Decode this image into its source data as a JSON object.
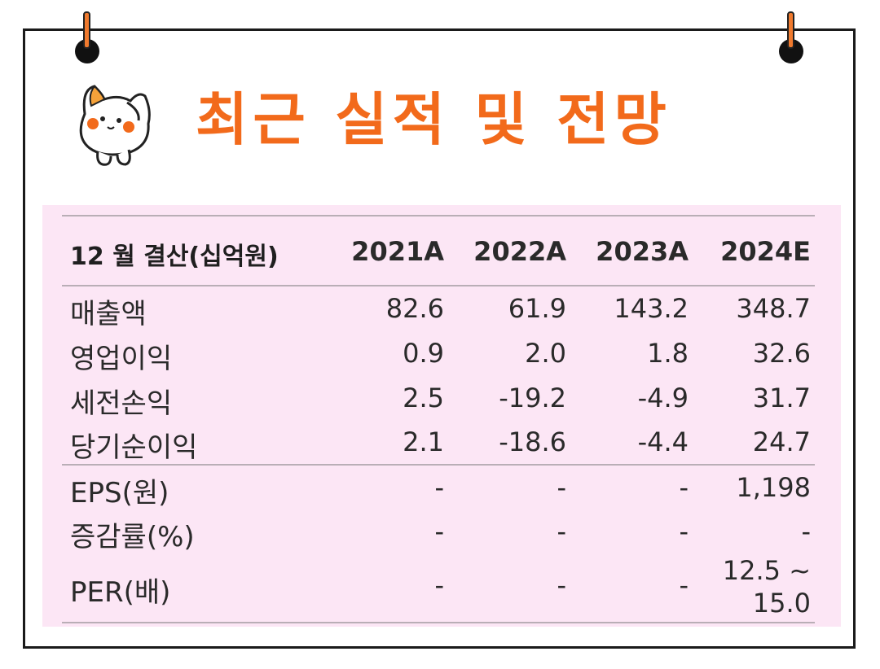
{
  "title": "최근 실적 및 전망",
  "colors": {
    "accent": "#f26a1b",
    "panel": "#fce6f5",
    "border": "#1a1a1a"
  },
  "icons": {
    "mascot": "cat-mascot-icon",
    "binder_rings": "binder-ring-icon"
  },
  "table": {
    "header": {
      "label": "12 월 결산(십억원)",
      "columns": [
        "2021A",
        "2022A",
        "2023A",
        "2024E"
      ]
    },
    "rows": [
      {
        "label": "매출액",
        "values": [
          "82.6",
          "61.9",
          "143.2",
          "348.7"
        ]
      },
      {
        "label": "영업이익",
        "values": [
          "0.9",
          "2.0",
          "1.8",
          "32.6"
        ]
      },
      {
        "label": "세전손익",
        "values": [
          "2.5",
          "-19.2",
          "-4.9",
          "31.7"
        ]
      },
      {
        "label": "당기순이익",
        "values": [
          "2.1",
          "-18.6",
          "-4.4",
          "24.7"
        ]
      },
      {
        "label": "EPS(원)",
        "values": [
          "-",
          "-",
          "-",
          "1,198"
        ]
      },
      {
        "label": "증감률(%)",
        "values": [
          "-",
          "-",
          "-",
          "-"
        ]
      },
      {
        "label": "PER(배)",
        "values": [
          "-",
          "-",
          "-",
          "12.5 ~"
        ],
        "extra": "15.0"
      }
    ]
  }
}
